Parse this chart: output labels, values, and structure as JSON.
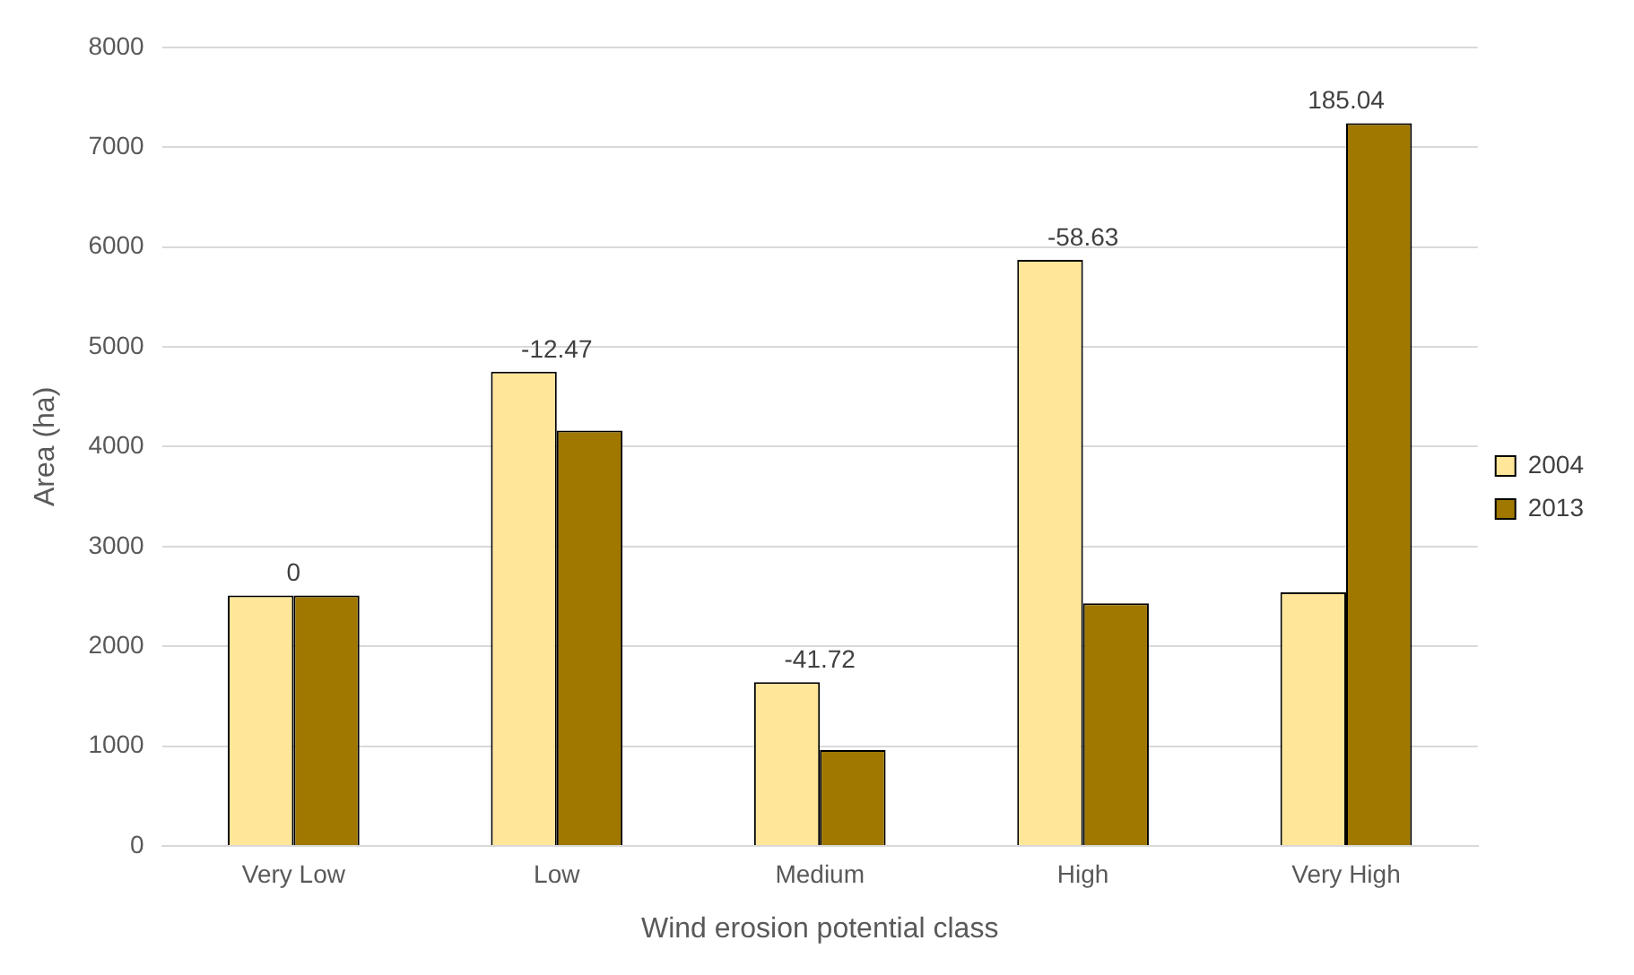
{
  "chart_data": {
    "type": "bar",
    "xlabel": "Wind erosion potential class",
    "ylabel": "Area (ha)",
    "categories": [
      "Very Low",
      "Low",
      "Medium",
      "High",
      "Very High"
    ],
    "series": [
      {
        "name": "2004",
        "color": "#ffe699",
        "values": [
          2510,
          4750,
          1640,
          5870,
          2540
        ]
      },
      {
        "name": "2013",
        "color": "#a07800",
        "values": [
          2510,
          4160,
          960,
          2430,
          7240
        ]
      }
    ],
    "ylim": [
      0,
      8000
    ],
    "yticks": [
      0,
      1000,
      2000,
      3000,
      4000,
      5000,
      6000,
      7000,
      8000
    ],
    "grid": "y",
    "legend": "right",
    "annotations": [
      {
        "text": "0",
        "x": "Very Low",
        "y": 2510
      },
      {
        "text": "-12.47",
        "x": "Low",
        "y": 4750
      },
      {
        "text": "-41.72",
        "x": "Medium",
        "y": 1640
      },
      {
        "text": "-58.63",
        "x": "High",
        "y": 5870
      },
      {
        "text": "185.04",
        "x": "Very High",
        "y": 7240
      }
    ]
  }
}
